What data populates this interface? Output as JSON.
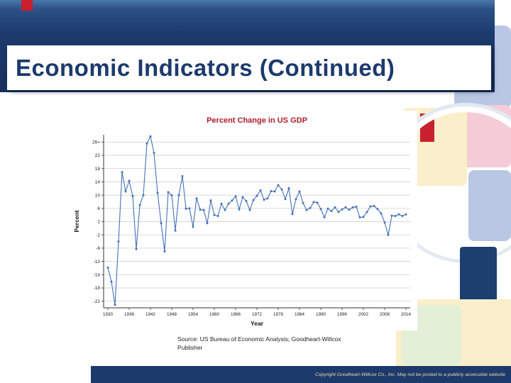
{
  "slide": {
    "title": "Economic Indicators (Continued)",
    "source_line1": "Source: US Bureau of  Economic Analysis; Goodheart-Willcox",
    "source_line2": "Publisher",
    "footer": "Copyright Goodheart-Willcox Co., Inc.  May not be posted to a publicly accessible website"
  },
  "colors": {
    "band_navy": "#1d3a6d",
    "accent_red": "#c7202e",
    "title_navy": "#1d3a6d",
    "chart_title_red": "#b01e28",
    "line_blue": "#4472b8",
    "footer_text": "#e9df9e",
    "deco_blue": "#b9c7e5",
    "deco_pink": "#f3ccd8",
    "deco_yellow": "#faeecb",
    "deco_green": "#e4efd8",
    "deco_navy": "#1d3f70"
  },
  "chart_data": {
    "type": "line",
    "title": "Percent Change in US GDP",
    "xlabel": "Year",
    "ylabel": "Percent",
    "legend": null,
    "grid": true,
    "xlim": [
      1928.8,
      2015.2
    ],
    "ylim": [
      -24,
      28.2
    ],
    "x_ticks": [
      1930,
      1936,
      1942,
      1948,
      1954,
      1960,
      1966,
      1972,
      1978,
      1984,
      1990,
      1996,
      2002,
      2008,
      2014
    ],
    "y_ticks": [
      26,
      22,
      18,
      14,
      10,
      6,
      2,
      -2,
      -6,
      -10,
      -14,
      -18,
      -22
    ],
    "y_tick_labels": [
      "26+",
      "22",
      "18",
      "14",
      "10",
      "6",
      "2",
      "-2",
      "-6",
      "-10",
      "-14",
      "-18",
      "-22"
    ],
    "x": [
      1930,
      1931,
      1932,
      1933,
      1934,
      1935,
      1936,
      1937,
      1938,
      1939,
      1940,
      1941,
      1942,
      1943,
      1944,
      1945,
      1946,
      1947,
      1948,
      1949,
      1950,
      1951,
      1952,
      1953,
      1954,
      1955,
      1956,
      1957,
      1958,
      1959,
      1960,
      1961,
      1962,
      1963,
      1964,
      1965,
      1966,
      1967,
      1968,
      1969,
      1970,
      1971,
      1972,
      1973,
      1974,
      1975,
      1976,
      1977,
      1978,
      1979,
      1980,
      1981,
      1982,
      1983,
      1984,
      1985,
      1986,
      1987,
      1988,
      1989,
      1990,
      1991,
      1992,
      1993,
      1994,
      1995,
      1996,
      1997,
      1998,
      1999,
      2000,
      2001,
      2002,
      2003,
      2004,
      2005,
      2006,
      2007,
      2008,
      2009,
      2010,
      2011,
      2012,
      2013,
      2014
    ],
    "values": [
      -11.9,
      -16.1,
      -23.1,
      -4.0,
      16.9,
      11.1,
      14.3,
      9.7,
      -6.3,
      7.0,
      10.0,
      25.6,
      27.7,
      22.7,
      10.7,
      1.5,
      -7.0,
      10.9,
      9.9,
      -0.7,
      10.0,
      15.7,
      5.9,
      6.0,
      0.4,
      9.0,
      5.6,
      5.5,
      1.5,
      8.4,
      4.0,
      3.7,
      7.4,
      5.5,
      7.4,
      8.4,
      9.6,
      5.7,
      9.4,
      8.2,
      5.5,
      8.5,
      9.8,
      11.4,
      8.6,
      9.0,
      11.2,
      11.1,
      13.0,
      11.7,
      8.8,
      12.1,
      4.3,
      8.8,
      11.1,
      7.6,
      5.5,
      6.1,
      7.9,
      7.7,
      5.8,
      3.3,
      5.9,
      5.2,
      6.3,
      4.9,
      5.7,
      6.3,
      5.6,
      6.3,
      6.5,
      3.3,
      3.4,
      4.9,
      6.6,
      6.7,
      5.8,
      4.5,
      1.7,
      -2.0,
      3.8,
      3.7,
      4.2,
      3.7,
      4.2
    ]
  }
}
